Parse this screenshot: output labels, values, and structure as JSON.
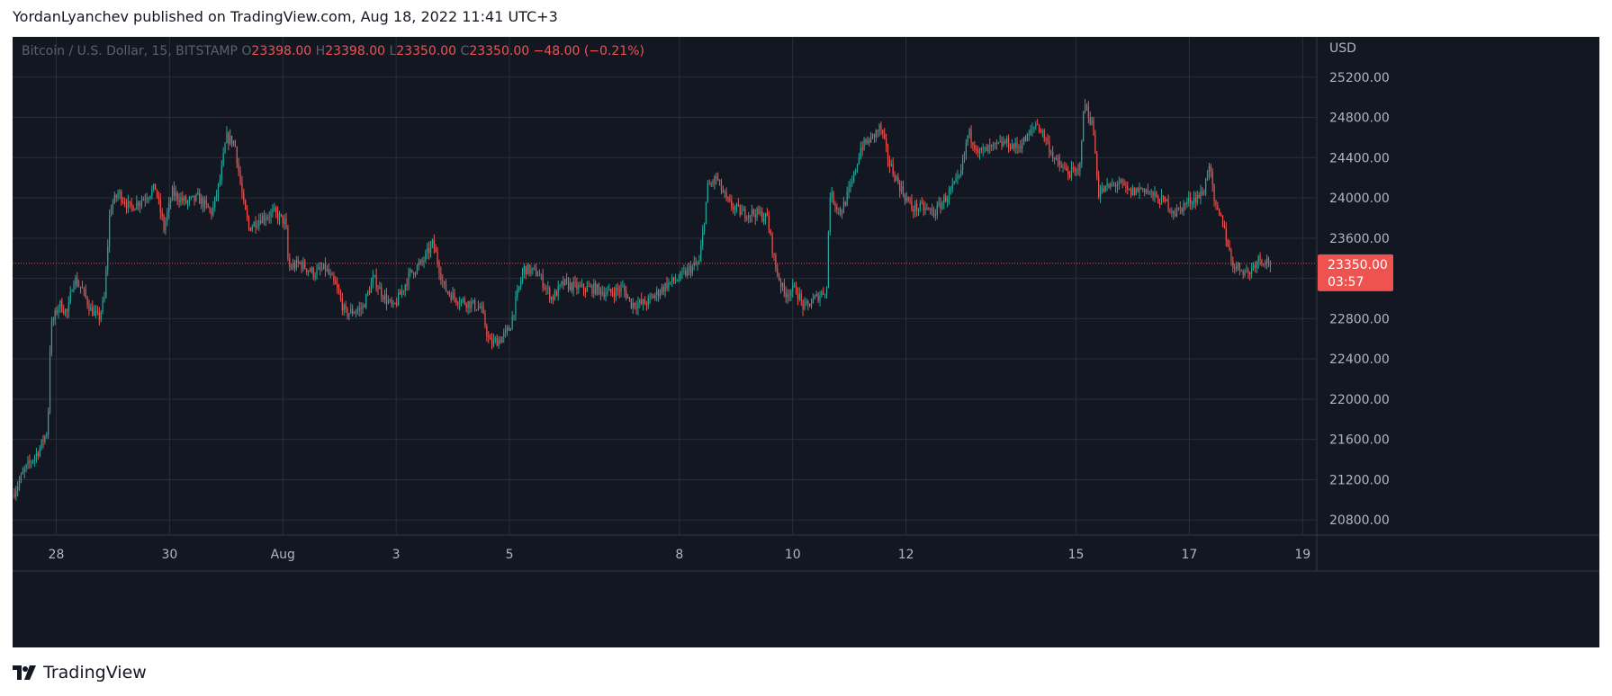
{
  "header": {
    "published_text": "YordanLyanchev published on TradingView.com, Aug 18, 2022 11:41 UTC+3"
  },
  "footer": {
    "brand": "TradingView",
    "logo_icon": "tradingview-logo-icon"
  },
  "colors": {
    "background": "#131722",
    "grid": "#2a2e39",
    "axis_text": "#b2b5be",
    "up": "#26a69a",
    "down": "#ef5350",
    "price_label_bg": "#ef5350"
  },
  "chart_data": {
    "type": "candlestick",
    "symbol_label": "Bitcoin / U.S. Dollar, 15, BITSTAMP",
    "ohlc": {
      "open": {
        "prefix": "O",
        "value": "23398.00"
      },
      "high": {
        "prefix": "H",
        "value": "23398.00"
      },
      "low": {
        "prefix": "L",
        "value": "23350.00"
      },
      "close": {
        "prefix": "C",
        "value": "23350.00"
      },
      "change": "−48.00 (−0.21%)"
    },
    "currency": "USD",
    "y_ticks": [
      "25200.00",
      "24800.00",
      "24400.00",
      "24000.00",
      "23600.00",
      "23200.00",
      "22800.00",
      "22400.00",
      "22000.00",
      "21600.00",
      "21200.00",
      "20800.00"
    ],
    "y_tick_values": [
      25200,
      24800,
      24400,
      24000,
      23600,
      23200,
      22800,
      22400,
      22000,
      21600,
      21200,
      20800
    ],
    "ylim": [
      20650,
      25600
    ],
    "x_ticks": [
      "28",
      "30",
      "Aug",
      "3",
      "5",
      "8",
      "10",
      "12",
      "15",
      "17",
      "19"
    ],
    "x_tick_days": [
      28,
      30,
      32,
      34,
      36,
      39,
      41,
      43,
      46,
      48,
      50
    ],
    "xlim": [
      27.23,
      50.25
    ],
    "last_price": {
      "value": "23350.00",
      "price": 23350,
      "countdown": "03:57"
    },
    "price_path": [
      [
        27.23,
        21050
      ],
      [
        27.45,
        21300
      ],
      [
        27.7,
        21500
      ],
      [
        27.85,
        21700
      ],
      [
        27.9,
        22700
      ],
      [
        28.05,
        22950
      ],
      [
        28.2,
        22850
      ],
      [
        28.3,
        23200
      ],
      [
        28.45,
        23100
      ],
      [
        28.6,
        22900
      ],
      [
        28.75,
        22800
      ],
      [
        28.85,
        23000
      ],
      [
        28.95,
        23900
      ],
      [
        29.1,
        24050
      ],
      [
        29.3,
        23900
      ],
      [
        29.55,
        24000
      ],
      [
        29.75,
        24100
      ],
      [
        29.9,
        23700
      ],
      [
        30.05,
        24050
      ],
      [
        30.3,
        23950
      ],
      [
        30.5,
        24000
      ],
      [
        30.75,
        23850
      ],
      [
        30.9,
        24200
      ],
      [
        31.0,
        24600
      ],
      [
        31.15,
        24550
      ],
      [
        31.3,
        23950
      ],
      [
        31.4,
        23700
      ],
      [
        31.6,
        23800
      ],
      [
        31.85,
        23850
      ],
      [
        32.05,
        23750
      ],
      [
        32.1,
        23300
      ],
      [
        32.3,
        23350
      ],
      [
        32.55,
        23250
      ],
      [
        32.75,
        23300
      ],
      [
        32.95,
        23100
      ],
      [
        33.1,
        22850
      ],
      [
        33.4,
        22900
      ],
      [
        33.6,
        23200
      ],
      [
        33.75,
        23050
      ],
      [
        33.95,
        22900
      ],
      [
        34.25,
        23250
      ],
      [
        34.45,
        23350
      ],
      [
        34.65,
        23550
      ],
      [
        34.85,
        23100
      ],
      [
        35.05,
        23000
      ],
      [
        35.3,
        22950
      ],
      [
        35.5,
        22900
      ],
      [
        35.65,
        22550
      ],
      [
        35.85,
        22600
      ],
      [
        36.0,
        22700
      ],
      [
        36.25,
        23300
      ],
      [
        36.5,
        23250
      ],
      [
        36.75,
        23000
      ],
      [
        36.95,
        23150
      ],
      [
        37.25,
        23100
      ],
      [
        37.5,
        23100
      ],
      [
        37.75,
        23050
      ],
      [
        38.0,
        23100
      ],
      [
        38.15,
        22950
      ],
      [
        38.4,
        22950
      ],
      [
        38.6,
        23050
      ],
      [
        38.8,
        23150
      ],
      [
        39.0,
        23200
      ],
      [
        39.2,
        23300
      ],
      [
        39.35,
        23350
      ],
      [
        39.5,
        24100
      ],
      [
        39.65,
        24200
      ],
      [
        39.85,
        23950
      ],
      [
        40.1,
        23850
      ],
      [
        40.35,
        23850
      ],
      [
        40.55,
        23800
      ],
      [
        40.7,
        23300
      ],
      [
        40.85,
        23050
      ],
      [
        41.05,
        23100
      ],
      [
        41.2,
        22900
      ],
      [
        41.4,
        23000
      ],
      [
        41.6,
        23100
      ],
      [
        41.65,
        24050
      ],
      [
        41.85,
        23850
      ],
      [
        42.05,
        24150
      ],
      [
        42.2,
        24500
      ],
      [
        42.4,
        24600
      ],
      [
        42.55,
        24700
      ],
      [
        42.7,
        24350
      ],
      [
        42.9,
        24100
      ],
      [
        43.1,
        23900
      ],
      [
        43.3,
        23900
      ],
      [
        43.5,
        23850
      ],
      [
        43.7,
        24000
      ],
      [
        43.95,
        24200
      ],
      [
        44.1,
        24650
      ],
      [
        44.3,
        24450
      ],
      [
        44.55,
        24500
      ],
      [
        44.75,
        24550
      ],
      [
        44.95,
        24500
      ],
      [
        45.15,
        24600
      ],
      [
        45.3,
        24750
      ],
      [
        45.45,
        24600
      ],
      [
        45.65,
        24350
      ],
      [
        45.85,
        24250
      ],
      [
        46.05,
        24250
      ],
      [
        46.15,
        24950
      ],
      [
        46.3,
        24700
      ],
      [
        46.4,
        24050
      ],
      [
        46.55,
        24100
      ],
      [
        46.75,
        24150
      ],
      [
        46.95,
        24050
      ],
      [
        47.2,
        24100
      ],
      [
        47.4,
        24000
      ],
      [
        47.6,
        23950
      ],
      [
        47.75,
        23850
      ],
      [
        47.95,
        23950
      ],
      [
        48.1,
        24000
      ],
      [
        48.25,
        24050
      ],
      [
        48.35,
        24350
      ],
      [
        48.45,
        23900
      ],
      [
        48.6,
        23750
      ],
      [
        48.75,
        23350
      ],
      [
        48.9,
        23300
      ],
      [
        49.05,
        23250
      ],
      [
        49.2,
        23400
      ],
      [
        49.35,
        23380
      ],
      [
        49.45,
        23350
      ]
    ],
    "grid": true
  }
}
